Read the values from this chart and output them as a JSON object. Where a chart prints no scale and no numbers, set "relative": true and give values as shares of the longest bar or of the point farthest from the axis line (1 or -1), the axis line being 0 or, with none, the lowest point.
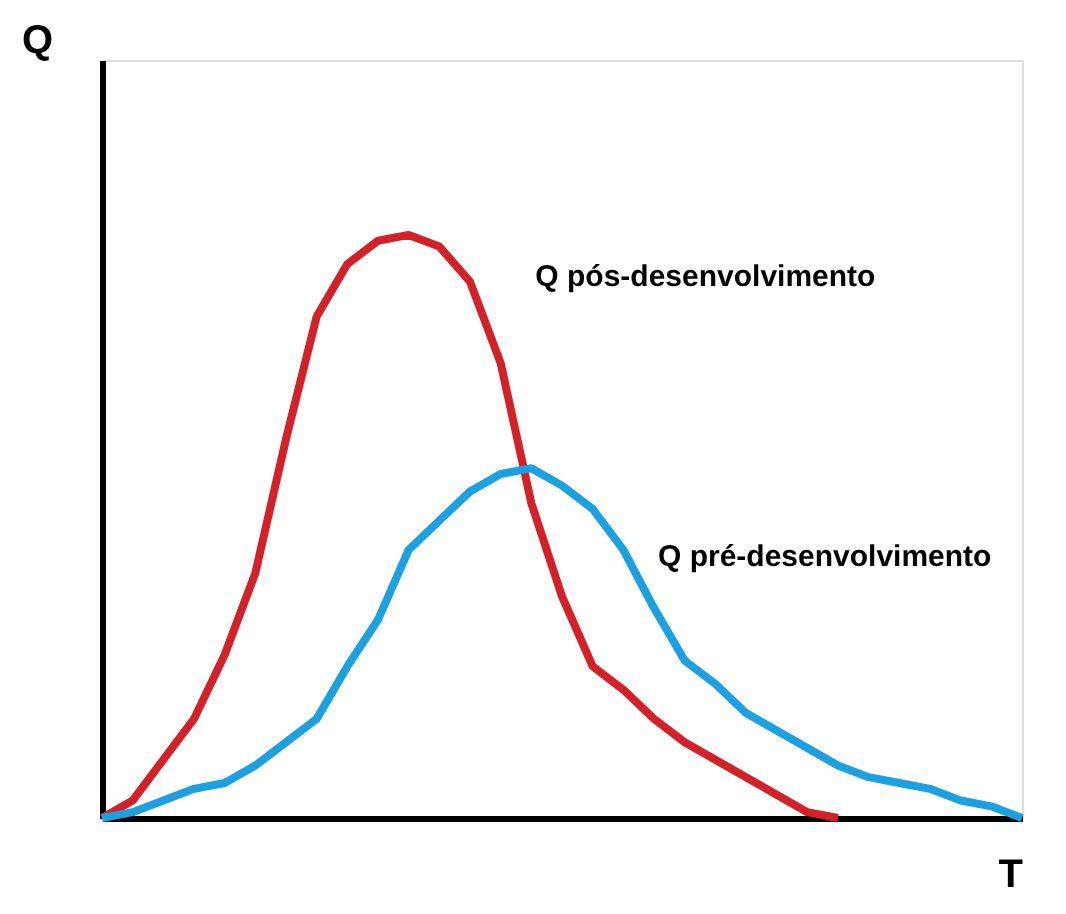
{
  "chart_data": {
    "type": "line",
    "relative": true,
    "xlabel": "T",
    "ylabel": "Q",
    "grid": false,
    "legend": false,
    "marker": "none",
    "line_style": "solid",
    "categories": [
      null,
      null,
      null,
      null,
      null,
      null,
      null,
      null,
      null,
      null,
      null,
      null,
      null,
      null,
      null,
      null,
      null,
      null,
      null,
      null,
      null,
      null,
      null,
      null,
      null,
      null,
      null,
      null,
      null,
      null,
      null
    ],
    "series": [
      {
        "name": "Q pós-desenvolvimento",
        "color": "#d42027",
        "values": [
          0,
          0.03,
          0.1,
          0.17,
          0.28,
          0.42,
          0.65,
          0.86,
          0.95,
          0.99,
          1.0,
          0.98,
          0.92,
          0.78,
          0.54,
          0.38,
          0.26,
          0.22,
          0.17,
          0.13,
          0.1,
          0.07,
          0.04,
          0.01,
          0,
          null,
          null,
          null,
          null,
          null,
          null
        ]
      },
      {
        "name": "Q pré-desenvolvimento",
        "color": "#1ba1e2",
        "values": [
          0,
          0.01,
          0.03,
          0.05,
          0.06,
          0.09,
          0.13,
          0.17,
          0.26,
          0.34,
          0.46,
          0.51,
          0.56,
          0.59,
          0.6,
          0.57,
          0.53,
          0.46,
          0.36,
          0.27,
          0.23,
          0.18,
          0.15,
          0.12,
          0.09,
          0.07,
          0.06,
          0.05,
          0.03,
          0.02,
          0
        ]
      }
    ]
  }
}
